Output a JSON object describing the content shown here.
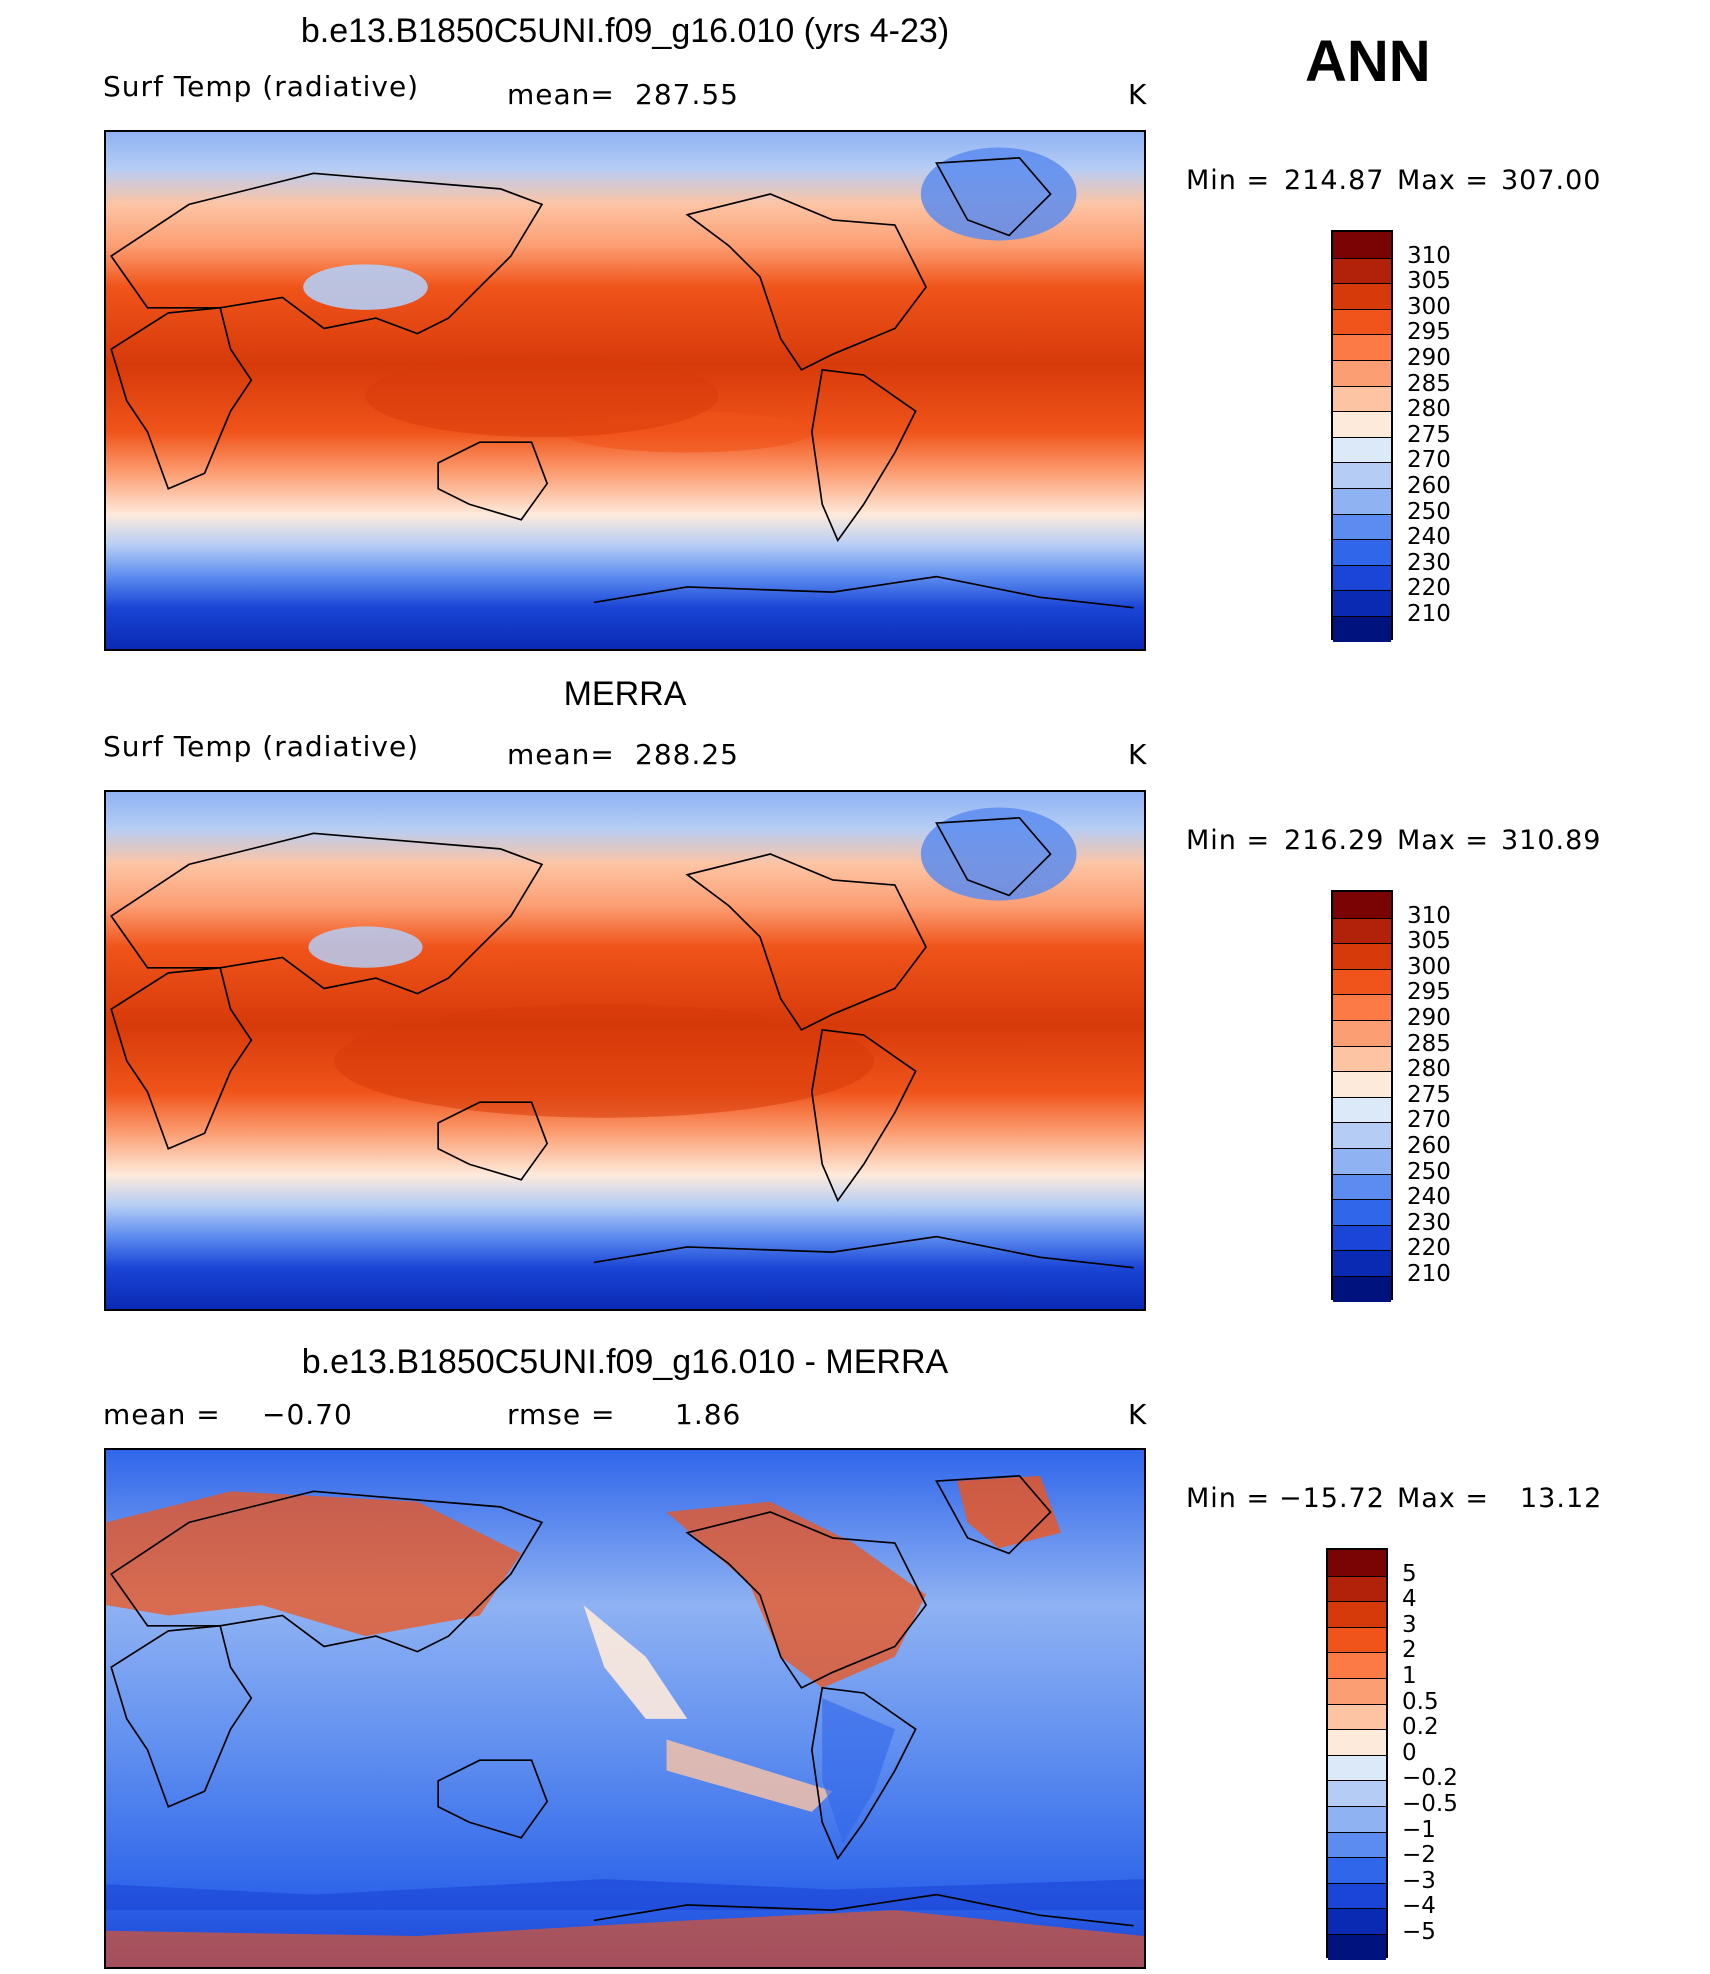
{
  "season": "ANN",
  "units": "K",
  "chart_data": [
    {
      "type": "heatmap",
      "title": "b.e13.B1850C5UNI.f09_g16.010 (yrs 4-23)",
      "variable": "Surf Temp (radiative)",
      "stat_label": "mean=",
      "stat_value": "287.55",
      "units": "K",
      "min_label": "Min =",
      "min": "214.87",
      "max_label": "Max =",
      "max": "307.00",
      "colorbar_levels": [
        "310",
        "305",
        "300",
        "295",
        "290",
        "285",
        "280",
        "275",
        "270",
        "260",
        "250",
        "240",
        "230",
        "220",
        "210"
      ],
      "colorbar_colors": [
        "#7a0403",
        "#b2210a",
        "#d73a0a",
        "#f0541a",
        "#fb7a45",
        "#fc9e73",
        "#fdc4a4",
        "#feeadb",
        "#dbe9f8",
        "#b5cdf5",
        "#8fb2f3",
        "#5c8cef",
        "#3066ea",
        "#1a45d6",
        "#0a2ab4",
        "#00127e"
      ]
    },
    {
      "type": "heatmap",
      "title": "MERRA",
      "variable": "Surf Temp (radiative)",
      "stat_label": "mean=",
      "stat_value": "288.25",
      "units": "K",
      "min_label": "Min =",
      "min": "216.29",
      "max_label": "Max =",
      "max": "310.89",
      "colorbar_levels": [
        "310",
        "305",
        "300",
        "295",
        "290",
        "285",
        "280",
        "275",
        "270",
        "260",
        "250",
        "240",
        "230",
        "220",
        "210"
      ],
      "colorbar_colors": [
        "#7a0403",
        "#b2210a",
        "#d73a0a",
        "#f0541a",
        "#fb7a45",
        "#fc9e73",
        "#fdc4a4",
        "#feeadb",
        "#dbe9f8",
        "#b5cdf5",
        "#8fb2f3",
        "#5c8cef",
        "#3066ea",
        "#1a45d6",
        "#0a2ab4",
        "#00127e"
      ]
    },
    {
      "type": "heatmap",
      "title": "b.e13.B1850C5UNI.f09_g16.010 - MERRA",
      "stat_label": "mean =",
      "stat_value": "−0.70",
      "rmse_label": "rmse =",
      "rmse_value": "1.86",
      "units": "K",
      "min_label": "Min =",
      "min": "−15.72",
      "max_label": "Max =",
      "max": "13.12",
      "colorbar_levels": [
        "5",
        "4",
        "3",
        "2",
        "1",
        "0.5",
        "0.2",
        "0",
        "−0.2",
        "−0.5",
        "−1",
        "−2",
        "−3",
        "−4",
        "−5"
      ],
      "colorbar_colors": [
        "#7a0403",
        "#b2210a",
        "#d73a0a",
        "#f0541a",
        "#fb7a45",
        "#fc9e73",
        "#fdc4a4",
        "#feeadb",
        "#dbe9f8",
        "#b5cdf5",
        "#8fb2f3",
        "#5c8cef",
        "#3066ea",
        "#1a45d6",
        "#0a2ab4",
        "#00127e"
      ]
    }
  ]
}
